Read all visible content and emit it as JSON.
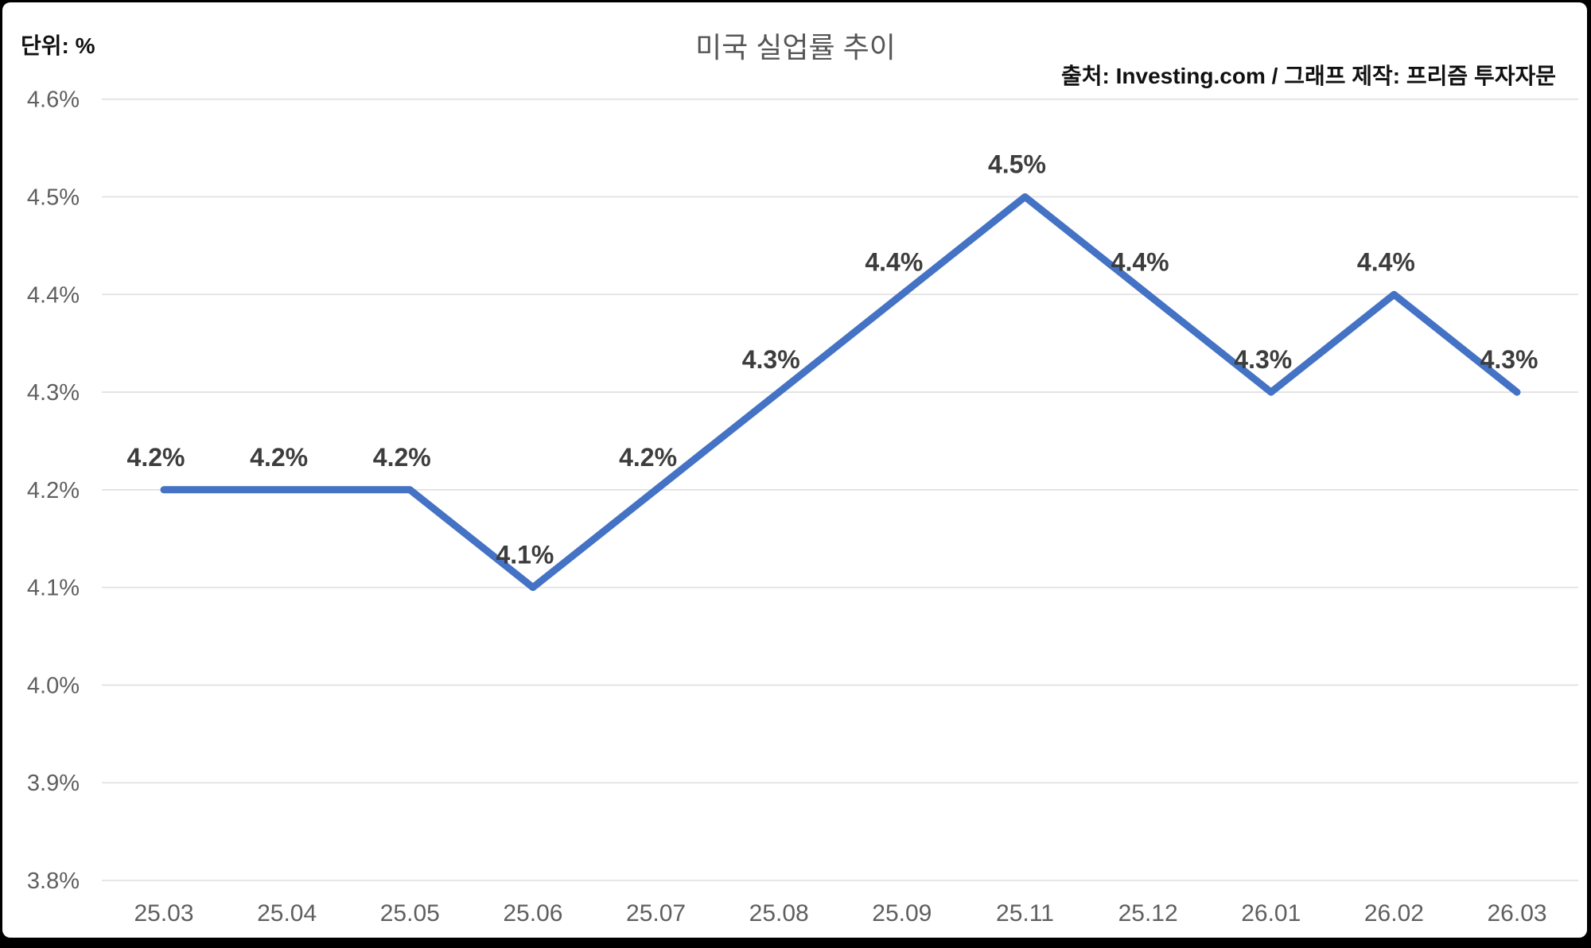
{
  "frame": {
    "background_color": "#000000",
    "panel_color": "#ffffff"
  },
  "header": {
    "unit_label": "단위: %",
    "title": "미국 실업률 추이",
    "source": "출처: Investing.com / 그래프 제작: 프리즘 투자자문"
  },
  "chart_data": {
    "type": "line",
    "title": "미국 실업률 추이",
    "unit": "%",
    "categories": [
      "25.03",
      "25.04",
      "25.05",
      "25.06",
      "25.07",
      "25.08",
      "25.09",
      "25.11",
      "25.12",
      "26.01",
      "26.02",
      "26.03"
    ],
    "series": [
      {
        "name": "미국 실업률",
        "values": [
          4.2,
          4.2,
          4.2,
          4.1,
          4.2,
          4.3,
          4.4,
          4.5,
          4.4,
          4.3,
          4.4,
          4.3
        ]
      }
    ],
    "point_labels": [
      "4.2%",
      "4.2%",
      "4.2%",
      "4.1%",
      "4.2%",
      "4.3%",
      "4.4%",
      "4.5%",
      "4.4%",
      "4.3%",
      "4.4%",
      "4.3%"
    ],
    "y_ticks": [
      {
        "value": 4.6,
        "label": "4.6%"
      },
      {
        "value": 4.5,
        "label": "4.5%"
      },
      {
        "value": 4.4,
        "label": "4.4%"
      },
      {
        "value": 4.3,
        "label": "4.3%"
      },
      {
        "value": 4.2,
        "label": "4.2%"
      },
      {
        "value": 4.1,
        "label": "4.1%"
      },
      {
        "value": 4.0,
        "label": "4.0%"
      },
      {
        "value": 3.9,
        "label": "3.9%"
      },
      {
        "value": 3.8,
        "label": "3.8%"
      }
    ],
    "ylim": [
      3.8,
      4.6
    ],
    "xlabel": "",
    "ylabel": "",
    "grid": true,
    "legend_position": "none",
    "line_color": "#4472c4",
    "grid_color": "#e2e2e2",
    "tick_color": "#5f5f5f",
    "data_label_color": "#3d3d3d"
  }
}
